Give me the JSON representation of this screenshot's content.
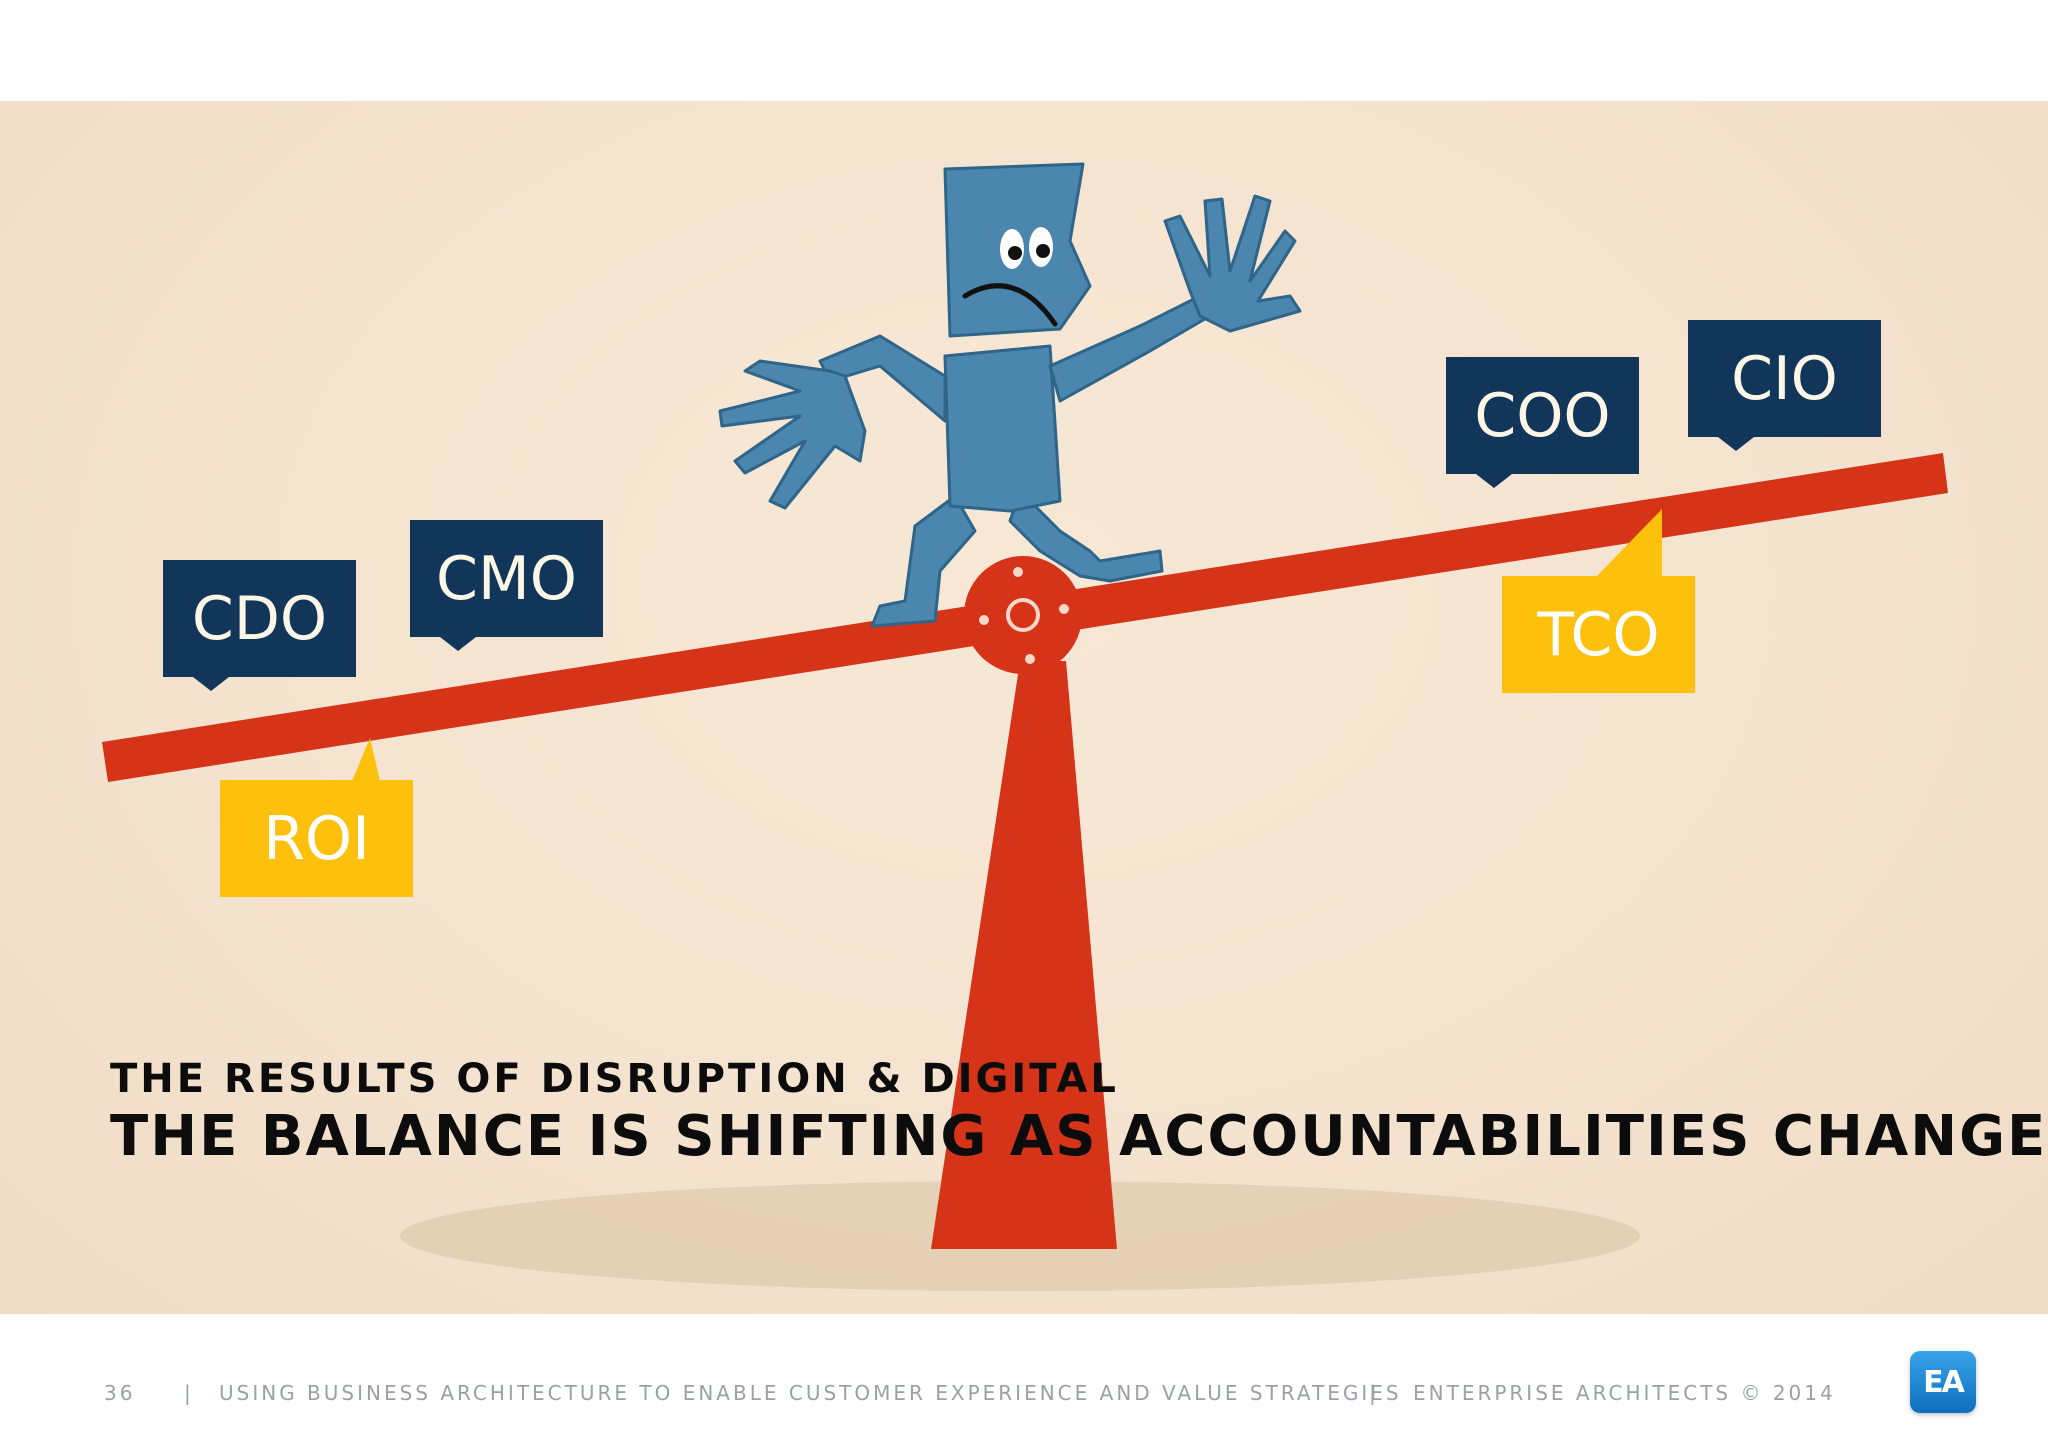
{
  "slide": {
    "tags": {
      "cdo": "CDO",
      "cmo": "CMO",
      "coo": "COO",
      "cio": "CIO",
      "roi": "ROI",
      "tco": "TCO"
    },
    "kicker": "THE RESULTS OF DISRUPTION & DIGITAL",
    "headline": "THE BALANCE IS SHIFTING AS ACCOUNTABILITIES CHANGE"
  },
  "footer": {
    "page_number": "36",
    "separator": "|",
    "presentation_title": "USING BUSINESS ARCHITECTURE TO ENABLE CUSTOMER EXPERIENCE AND VALUE STRATEGIES",
    "copyright": "ENTERPRISE ARCHITECTS © 2014",
    "logo_text": "EA"
  },
  "colors": {
    "navy": "#12365a",
    "gold": "#fcc00d",
    "seesaw_red": "#d63418",
    "figure_blue": "#4a86ad",
    "background": "#f4e3cf"
  },
  "icons": [
    "seesaw-illustration",
    "worried-person-illustration",
    "ea-logo"
  ]
}
